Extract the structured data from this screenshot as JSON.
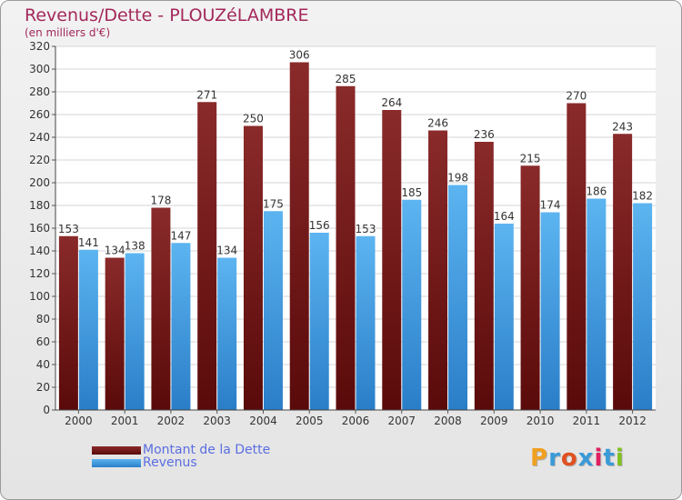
{
  "header": {
    "title": "Revenus/Dette - PLOUZéLAMBRE",
    "subtitle": "(en milliers d'€)"
  },
  "logo": {
    "text": "Proxiti"
  },
  "colors": {
    "title": "#a3285a",
    "debt_bar": "#7a2020",
    "revenue_bar": "#4ba3e8",
    "legend_text": "#5a6ee0"
  },
  "chart_data": {
    "type": "bar",
    "categories": [
      "2000",
      "2001",
      "2002",
      "2003",
      "2004",
      "2005",
      "2006",
      "2007",
      "2008",
      "2009",
      "2010",
      "2011",
      "2012"
    ],
    "series": [
      {
        "name": "Montant de la Dette",
        "values": [
          153,
          134,
          178,
          271,
          250,
          306,
          285,
          264,
          246,
          236,
          215,
          270,
          243
        ]
      },
      {
        "name": "Revenus",
        "values": [
          141,
          138,
          147,
          134,
          175,
          156,
          153,
          185,
          198,
          164,
          174,
          186,
          182
        ]
      }
    ],
    "title": "Revenus/Dette - PLOUZéLAMBRE",
    "ylabel": "(en milliers d'€)",
    "ylim": [
      0,
      320
    ],
    "ytick_step": 20,
    "grid": true,
    "legend": "bottom-left"
  }
}
